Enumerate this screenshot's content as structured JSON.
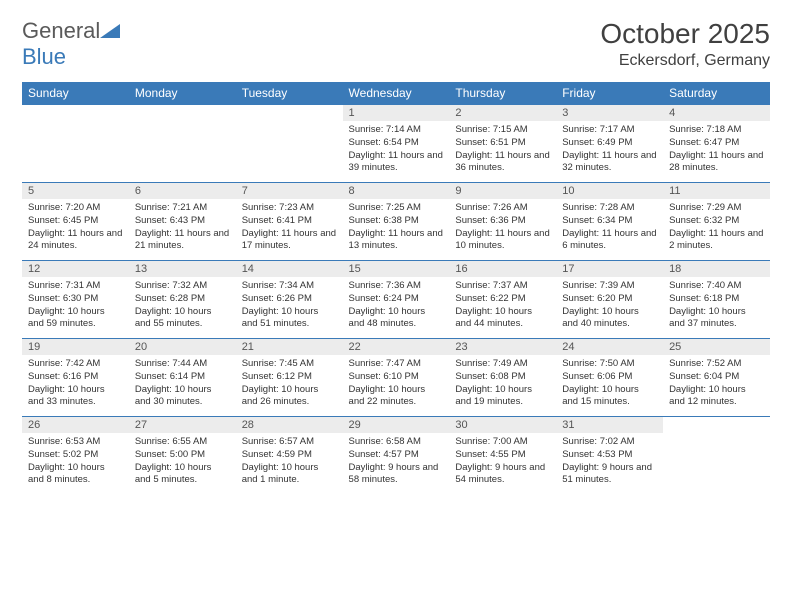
{
  "logo": {
    "word1": "General",
    "word2": "Blue"
  },
  "title": "October 2025",
  "location": "Eckersdorf, Germany",
  "colors": {
    "accent": "#3a7ab8",
    "header_text": "#ffffff",
    "daynum_bg": "#ececec",
    "text": "#333333"
  },
  "weekdays": [
    "Sunday",
    "Monday",
    "Tuesday",
    "Wednesday",
    "Thursday",
    "Friday",
    "Saturday"
  ],
  "grid": [
    [
      {
        "n": "",
        "t": ""
      },
      {
        "n": "",
        "t": ""
      },
      {
        "n": "",
        "t": ""
      },
      {
        "n": "1",
        "t": "Sunrise: 7:14 AM\nSunset: 6:54 PM\nDaylight: 11 hours and 39 minutes."
      },
      {
        "n": "2",
        "t": "Sunrise: 7:15 AM\nSunset: 6:51 PM\nDaylight: 11 hours and 36 minutes."
      },
      {
        "n": "3",
        "t": "Sunrise: 7:17 AM\nSunset: 6:49 PM\nDaylight: 11 hours and 32 minutes."
      },
      {
        "n": "4",
        "t": "Sunrise: 7:18 AM\nSunset: 6:47 PM\nDaylight: 11 hours and 28 minutes."
      }
    ],
    [
      {
        "n": "5",
        "t": "Sunrise: 7:20 AM\nSunset: 6:45 PM\nDaylight: 11 hours and 24 minutes."
      },
      {
        "n": "6",
        "t": "Sunrise: 7:21 AM\nSunset: 6:43 PM\nDaylight: 11 hours and 21 minutes."
      },
      {
        "n": "7",
        "t": "Sunrise: 7:23 AM\nSunset: 6:41 PM\nDaylight: 11 hours and 17 minutes."
      },
      {
        "n": "8",
        "t": "Sunrise: 7:25 AM\nSunset: 6:38 PM\nDaylight: 11 hours and 13 minutes."
      },
      {
        "n": "9",
        "t": "Sunrise: 7:26 AM\nSunset: 6:36 PM\nDaylight: 11 hours and 10 minutes."
      },
      {
        "n": "10",
        "t": "Sunrise: 7:28 AM\nSunset: 6:34 PM\nDaylight: 11 hours and 6 minutes."
      },
      {
        "n": "11",
        "t": "Sunrise: 7:29 AM\nSunset: 6:32 PM\nDaylight: 11 hours and 2 minutes."
      }
    ],
    [
      {
        "n": "12",
        "t": "Sunrise: 7:31 AM\nSunset: 6:30 PM\nDaylight: 10 hours and 59 minutes."
      },
      {
        "n": "13",
        "t": "Sunrise: 7:32 AM\nSunset: 6:28 PM\nDaylight: 10 hours and 55 minutes."
      },
      {
        "n": "14",
        "t": "Sunrise: 7:34 AM\nSunset: 6:26 PM\nDaylight: 10 hours and 51 minutes."
      },
      {
        "n": "15",
        "t": "Sunrise: 7:36 AM\nSunset: 6:24 PM\nDaylight: 10 hours and 48 minutes."
      },
      {
        "n": "16",
        "t": "Sunrise: 7:37 AM\nSunset: 6:22 PM\nDaylight: 10 hours and 44 minutes."
      },
      {
        "n": "17",
        "t": "Sunrise: 7:39 AM\nSunset: 6:20 PM\nDaylight: 10 hours and 40 minutes."
      },
      {
        "n": "18",
        "t": "Sunrise: 7:40 AM\nSunset: 6:18 PM\nDaylight: 10 hours and 37 minutes."
      }
    ],
    [
      {
        "n": "19",
        "t": "Sunrise: 7:42 AM\nSunset: 6:16 PM\nDaylight: 10 hours and 33 minutes."
      },
      {
        "n": "20",
        "t": "Sunrise: 7:44 AM\nSunset: 6:14 PM\nDaylight: 10 hours and 30 minutes."
      },
      {
        "n": "21",
        "t": "Sunrise: 7:45 AM\nSunset: 6:12 PM\nDaylight: 10 hours and 26 minutes."
      },
      {
        "n": "22",
        "t": "Sunrise: 7:47 AM\nSunset: 6:10 PM\nDaylight: 10 hours and 22 minutes."
      },
      {
        "n": "23",
        "t": "Sunrise: 7:49 AM\nSunset: 6:08 PM\nDaylight: 10 hours and 19 minutes."
      },
      {
        "n": "24",
        "t": "Sunrise: 7:50 AM\nSunset: 6:06 PM\nDaylight: 10 hours and 15 minutes."
      },
      {
        "n": "25",
        "t": "Sunrise: 7:52 AM\nSunset: 6:04 PM\nDaylight: 10 hours and 12 minutes."
      }
    ],
    [
      {
        "n": "26",
        "t": "Sunrise: 6:53 AM\nSunset: 5:02 PM\nDaylight: 10 hours and 8 minutes."
      },
      {
        "n": "27",
        "t": "Sunrise: 6:55 AM\nSunset: 5:00 PM\nDaylight: 10 hours and 5 minutes."
      },
      {
        "n": "28",
        "t": "Sunrise: 6:57 AM\nSunset: 4:59 PM\nDaylight: 10 hours and 1 minute."
      },
      {
        "n": "29",
        "t": "Sunrise: 6:58 AM\nSunset: 4:57 PM\nDaylight: 9 hours and 58 minutes."
      },
      {
        "n": "30",
        "t": "Sunrise: 7:00 AM\nSunset: 4:55 PM\nDaylight: 9 hours and 54 minutes."
      },
      {
        "n": "31",
        "t": "Sunrise: 7:02 AM\nSunset: 4:53 PM\nDaylight: 9 hours and 51 minutes."
      },
      {
        "n": "",
        "t": ""
      }
    ]
  ]
}
